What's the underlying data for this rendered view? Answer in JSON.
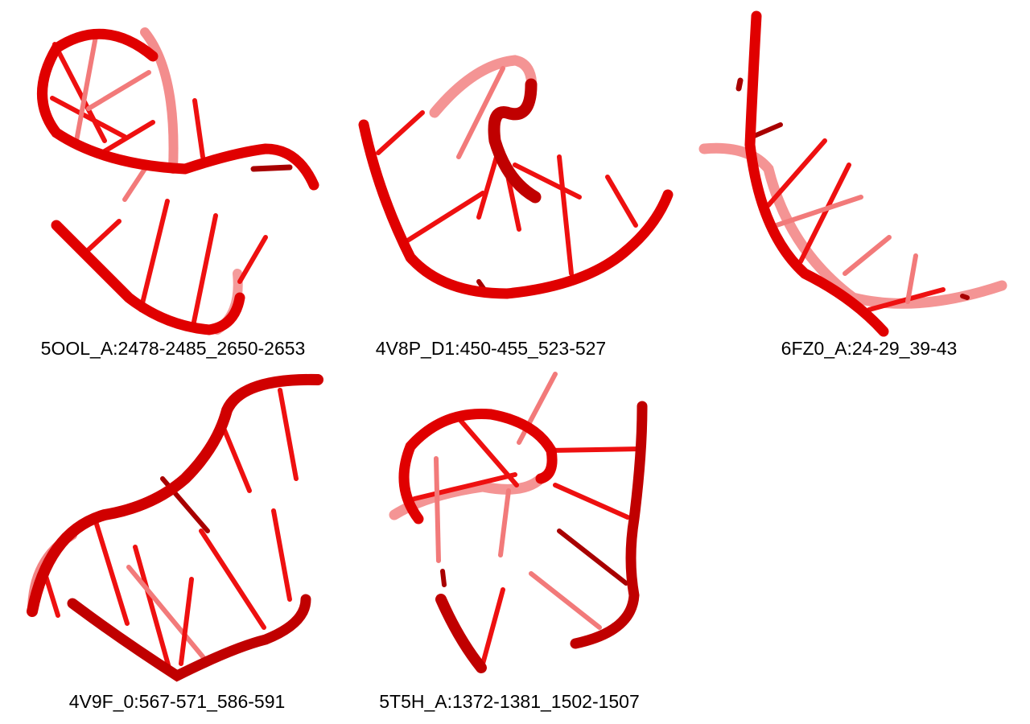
{
  "colors": {
    "backbone": "#e00000",
    "backbone_dark": "#a80000",
    "backbone_light": "#f07070",
    "base": "#ee1010",
    "base_faded": "#f27a7a"
  },
  "structures": [
    {
      "id": "s1",
      "label": "5OOL_A:2478-2485_2650-2653"
    },
    {
      "id": "s2",
      "label": "4V8P_D1:450-455_523-527"
    },
    {
      "id": "s3",
      "label": "6FZ0_A:24-29_39-43"
    },
    {
      "id": "s4",
      "label": "4V9F_0:567-571_586-591"
    },
    {
      "id": "s5",
      "label": "5T5H_A:1372-1381_1502-1507"
    }
  ]
}
